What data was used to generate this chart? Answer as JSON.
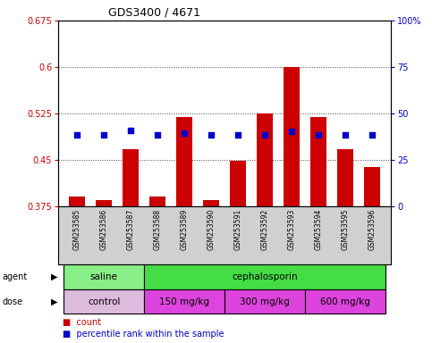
{
  "title": "GDS3400 / 4671",
  "samples": [
    "GSM253585",
    "GSM253586",
    "GSM253587",
    "GSM253588",
    "GSM253589",
    "GSM253590",
    "GSM253591",
    "GSM253592",
    "GSM253593",
    "GSM253594",
    "GSM253595",
    "GSM253596"
  ],
  "red_values": [
    0.39,
    0.385,
    0.468,
    0.39,
    0.52,
    0.385,
    0.448,
    0.525,
    0.6,
    0.52,
    0.468,
    0.438
  ],
  "blue_values": [
    0.49,
    0.49,
    0.497,
    0.49,
    0.494,
    0.491,
    0.49,
    0.49,
    0.496,
    0.491,
    0.491,
    0.491
  ],
  "ylim_left": [
    0.375,
    0.675
  ],
  "ylim_right": [
    0,
    100
  ],
  "yticks_left": [
    0.375,
    0.45,
    0.525,
    0.6,
    0.675
  ],
  "yticks_right": [
    0,
    25,
    50,
    75,
    100
  ],
  "ytick_labels_left": [
    "0.375",
    "0.45",
    "0.525",
    "0.6",
    "0.675"
  ],
  "ytick_labels_right": [
    "0",
    "25",
    "50",
    "75",
    "100%"
  ],
  "red_color": "#cc0000",
  "blue_color": "#0000cc",
  "bar_width": 0.6,
  "background_color": "#ffffff",
  "saline_color": "#88ee88",
  "ceph_color": "#44dd44",
  "control_color": "#ddbbdd",
  "dose_color": "#dd44dd",
  "sample_bg": "#d0d0d0"
}
